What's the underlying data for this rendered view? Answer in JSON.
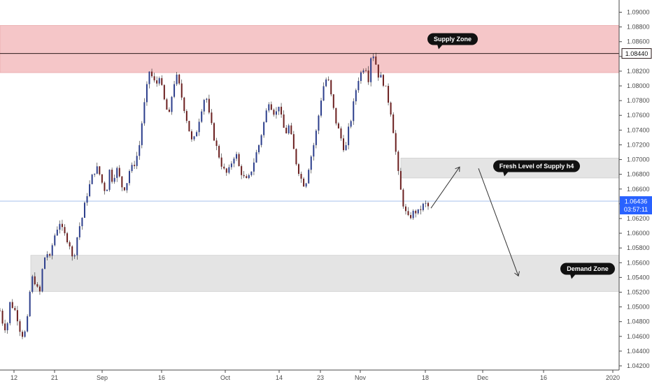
{
  "chart_data": {
    "type": "candlestick",
    "y_axis": {
      "ticks": [
        "1.09000",
        "1.08800",
        "1.08600",
        "1.08400",
        "1.08200",
        "1.08000",
        "1.07800",
        "1.07600",
        "1.07400",
        "1.07200",
        "1.07000",
        "1.06800",
        "1.06600",
        "1.06400",
        "1.06200",
        "1.06000",
        "1.05800",
        "1.05600",
        "1.05400",
        "1.05200",
        "1.05000",
        "1.04800",
        "1.04600",
        "1.04400",
        "1.04200"
      ],
      "range": [
        1.0415,
        1.0915
      ]
    },
    "x_axis": {
      "ticks": [
        "12",
        "21",
        "Sep",
        "16",
        "Oct",
        "14",
        "23",
        "Nov",
        "18",
        "Dec",
        "16",
        "2020"
      ]
    },
    "zones": [
      {
        "label": "Supply Zone",
        "low": 1.0818,
        "high": 1.0882,
        "color": "#f5c6c8"
      },
      {
        "label": "Fresh Level of Supply h4",
        "low": 1.0675,
        "high": 1.0702,
        "color": "#e4e4e4"
      },
      {
        "label": "Demand Zone",
        "low": 1.0521,
        "high": 1.057,
        "color": "#e4e4e4"
      }
    ],
    "horizontal_lines": [
      {
        "price": 1.0844,
        "label": "1.08440",
        "color": "#2b1a1a"
      },
      {
        "price": 1.06436,
        "label": "1.06436",
        "color": "#9ab8ea"
      }
    ],
    "current_price": {
      "value": "1.06436",
      "countdown": "03:57:11",
      "color": "#2962ff"
    },
    "projection_path": [
      {
        "x": 0.0,
        "y": 1.0634
      },
      {
        "x": 1.0,
        "y": 1.069
      },
      {
        "x": 2.0,
        "y": 1.0542
      }
    ],
    "price_path": [
      [
        0,
        1.0495
      ],
      [
        2,
        1.0475
      ],
      [
        4,
        1.047
      ],
      [
        6,
        1.0505
      ],
      [
        8,
        1.05
      ],
      [
        10,
        1.049
      ],
      [
        12,
        1.047
      ],
      [
        14,
        1.046
      ],
      [
        16,
        1.047
      ],
      [
        18,
        1.052
      ],
      [
        20,
        1.0545
      ],
      [
        22,
        1.0525
      ],
      [
        24,
        1.052
      ],
      [
        26,
        1.056
      ],
      [
        28,
        1.0575
      ],
      [
        30,
        1.0565
      ],
      [
        32,
        1.059
      ],
      [
        34,
        1.0605
      ],
      [
        36,
        1.0615
      ],
      [
        38,
        1.06
      ],
      [
        40,
        1.0595
      ],
      [
        42,
        1.0585
      ],
      [
        44,
        1.056
      ],
      [
        46,
        1.059
      ],
      [
        48,
        1.061
      ],
      [
        50,
        1.0625
      ],
      [
        52,
        1.065
      ],
      [
        54,
        1.0665
      ],
      [
        56,
        1.068
      ],
      [
        58,
        1.069
      ],
      [
        60,
        1.068
      ],
      [
        62,
        1.0665
      ],
      [
        64,
        1.0655
      ],
      [
        66,
        1.0685
      ],
      [
        68,
        1.067
      ],
      [
        70,
        1.069
      ],
      [
        72,
        1.0675
      ],
      [
        74,
        1.066
      ],
      [
        76,
        1.0665
      ],
      [
        78,
        1.0685
      ],
      [
        80,
        1.069
      ],
      [
        82,
        1.07
      ],
      [
        84,
        1.072
      ],
      [
        86,
        1.076
      ],
      [
        88,
        1.079
      ],
      [
        90,
        1.082
      ],
      [
        92,
        1.081
      ],
      [
        94,
        1.08
      ],
      [
        96,
        1.0815
      ],
      [
        98,
        1.079
      ],
      [
        100,
        1.077
      ],
      [
        102,
        1.076
      ],
      [
        104,
        1.0795
      ],
      [
        106,
        1.0815
      ],
      [
        108,
        1.08
      ],
      [
        110,
        1.078
      ],
      [
        112,
        1.076
      ],
      [
        114,
        1.074
      ],
      [
        116,
        1.072
      ],
      [
        118,
        1.0735
      ],
      [
        120,
        1.0755
      ],
      [
        122,
        1.0775
      ],
      [
        124,
        1.079
      ],
      [
        126,
        1.076
      ],
      [
        128,
        1.074
      ],
      [
        130,
        1.072
      ],
      [
        132,
        1.0705
      ],
      [
        134,
        1.069
      ],
      [
        136,
        1.068
      ],
      [
        138,
        1.0685
      ],
      [
        140,
        1.07
      ],
      [
        142,
        1.071
      ],
      [
        144,
        1.069
      ],
      [
        146,
        1.068
      ],
      [
        148,
        1.067
      ],
      [
        150,
        1.0675
      ],
      [
        152,
        1.069
      ],
      [
        154,
        1.0705
      ],
      [
        156,
        1.072
      ],
      [
        158,
        1.074
      ],
      [
        160,
        1.076
      ],
      [
        162,
        1.078
      ],
      [
        164,
        1.077
      ],
      [
        166,
        1.076
      ],
      [
        168,
        1.0775
      ],
      [
        170,
        1.075
      ],
      [
        172,
        1.0735
      ],
      [
        174,
        1.0745
      ],
      [
        176,
        1.0725
      ],
      [
        178,
        1.07
      ],
      [
        180,
        1.0685
      ],
      [
        182,
        1.067
      ],
      [
        184,
        1.0665
      ],
      [
        186,
        1.069
      ],
      [
        188,
        1.071
      ],
      [
        190,
        1.073
      ],
      [
        192,
        1.076
      ],
      [
        194,
        1.079
      ],
      [
        196,
        1.081
      ],
      [
        198,
        1.0805
      ],
      [
        200,
        1.078
      ],
      [
        202,
        1.0755
      ],
      [
        204,
        1.074
      ],
      [
        206,
        1.0725
      ],
      [
        208,
        1.071
      ],
      [
        210,
        1.074
      ],
      [
        212,
        1.076
      ],
      [
        214,
        1.079
      ],
      [
        216,
        1.081
      ],
      [
        218,
        1.082
      ],
      [
        220,
        1.083
      ],
      [
        222,
        1.081
      ],
      [
        224,
        1.085
      ],
      [
        226,
        1.0835
      ],
      [
        228,
        1.0815
      ],
      [
        230,
        1.081
      ],
      [
        232,
        1.08
      ],
      [
        234,
        1.078
      ],
      [
        236,
        1.076
      ],
      [
        238,
        1.072
      ],
      [
        240,
        1.068
      ],
      [
        242,
        1.065
      ],
      [
        244,
        1.063
      ],
      [
        246,
        1.062
      ],
      [
        248,
        1.0625
      ],
      [
        250,
        1.063
      ],
      [
        252,
        1.0628
      ],
      [
        254,
        1.0635
      ],
      [
        256,
        1.064
      ],
      [
        258,
        1.0636
      ]
    ],
    "grid": false
  }
}
